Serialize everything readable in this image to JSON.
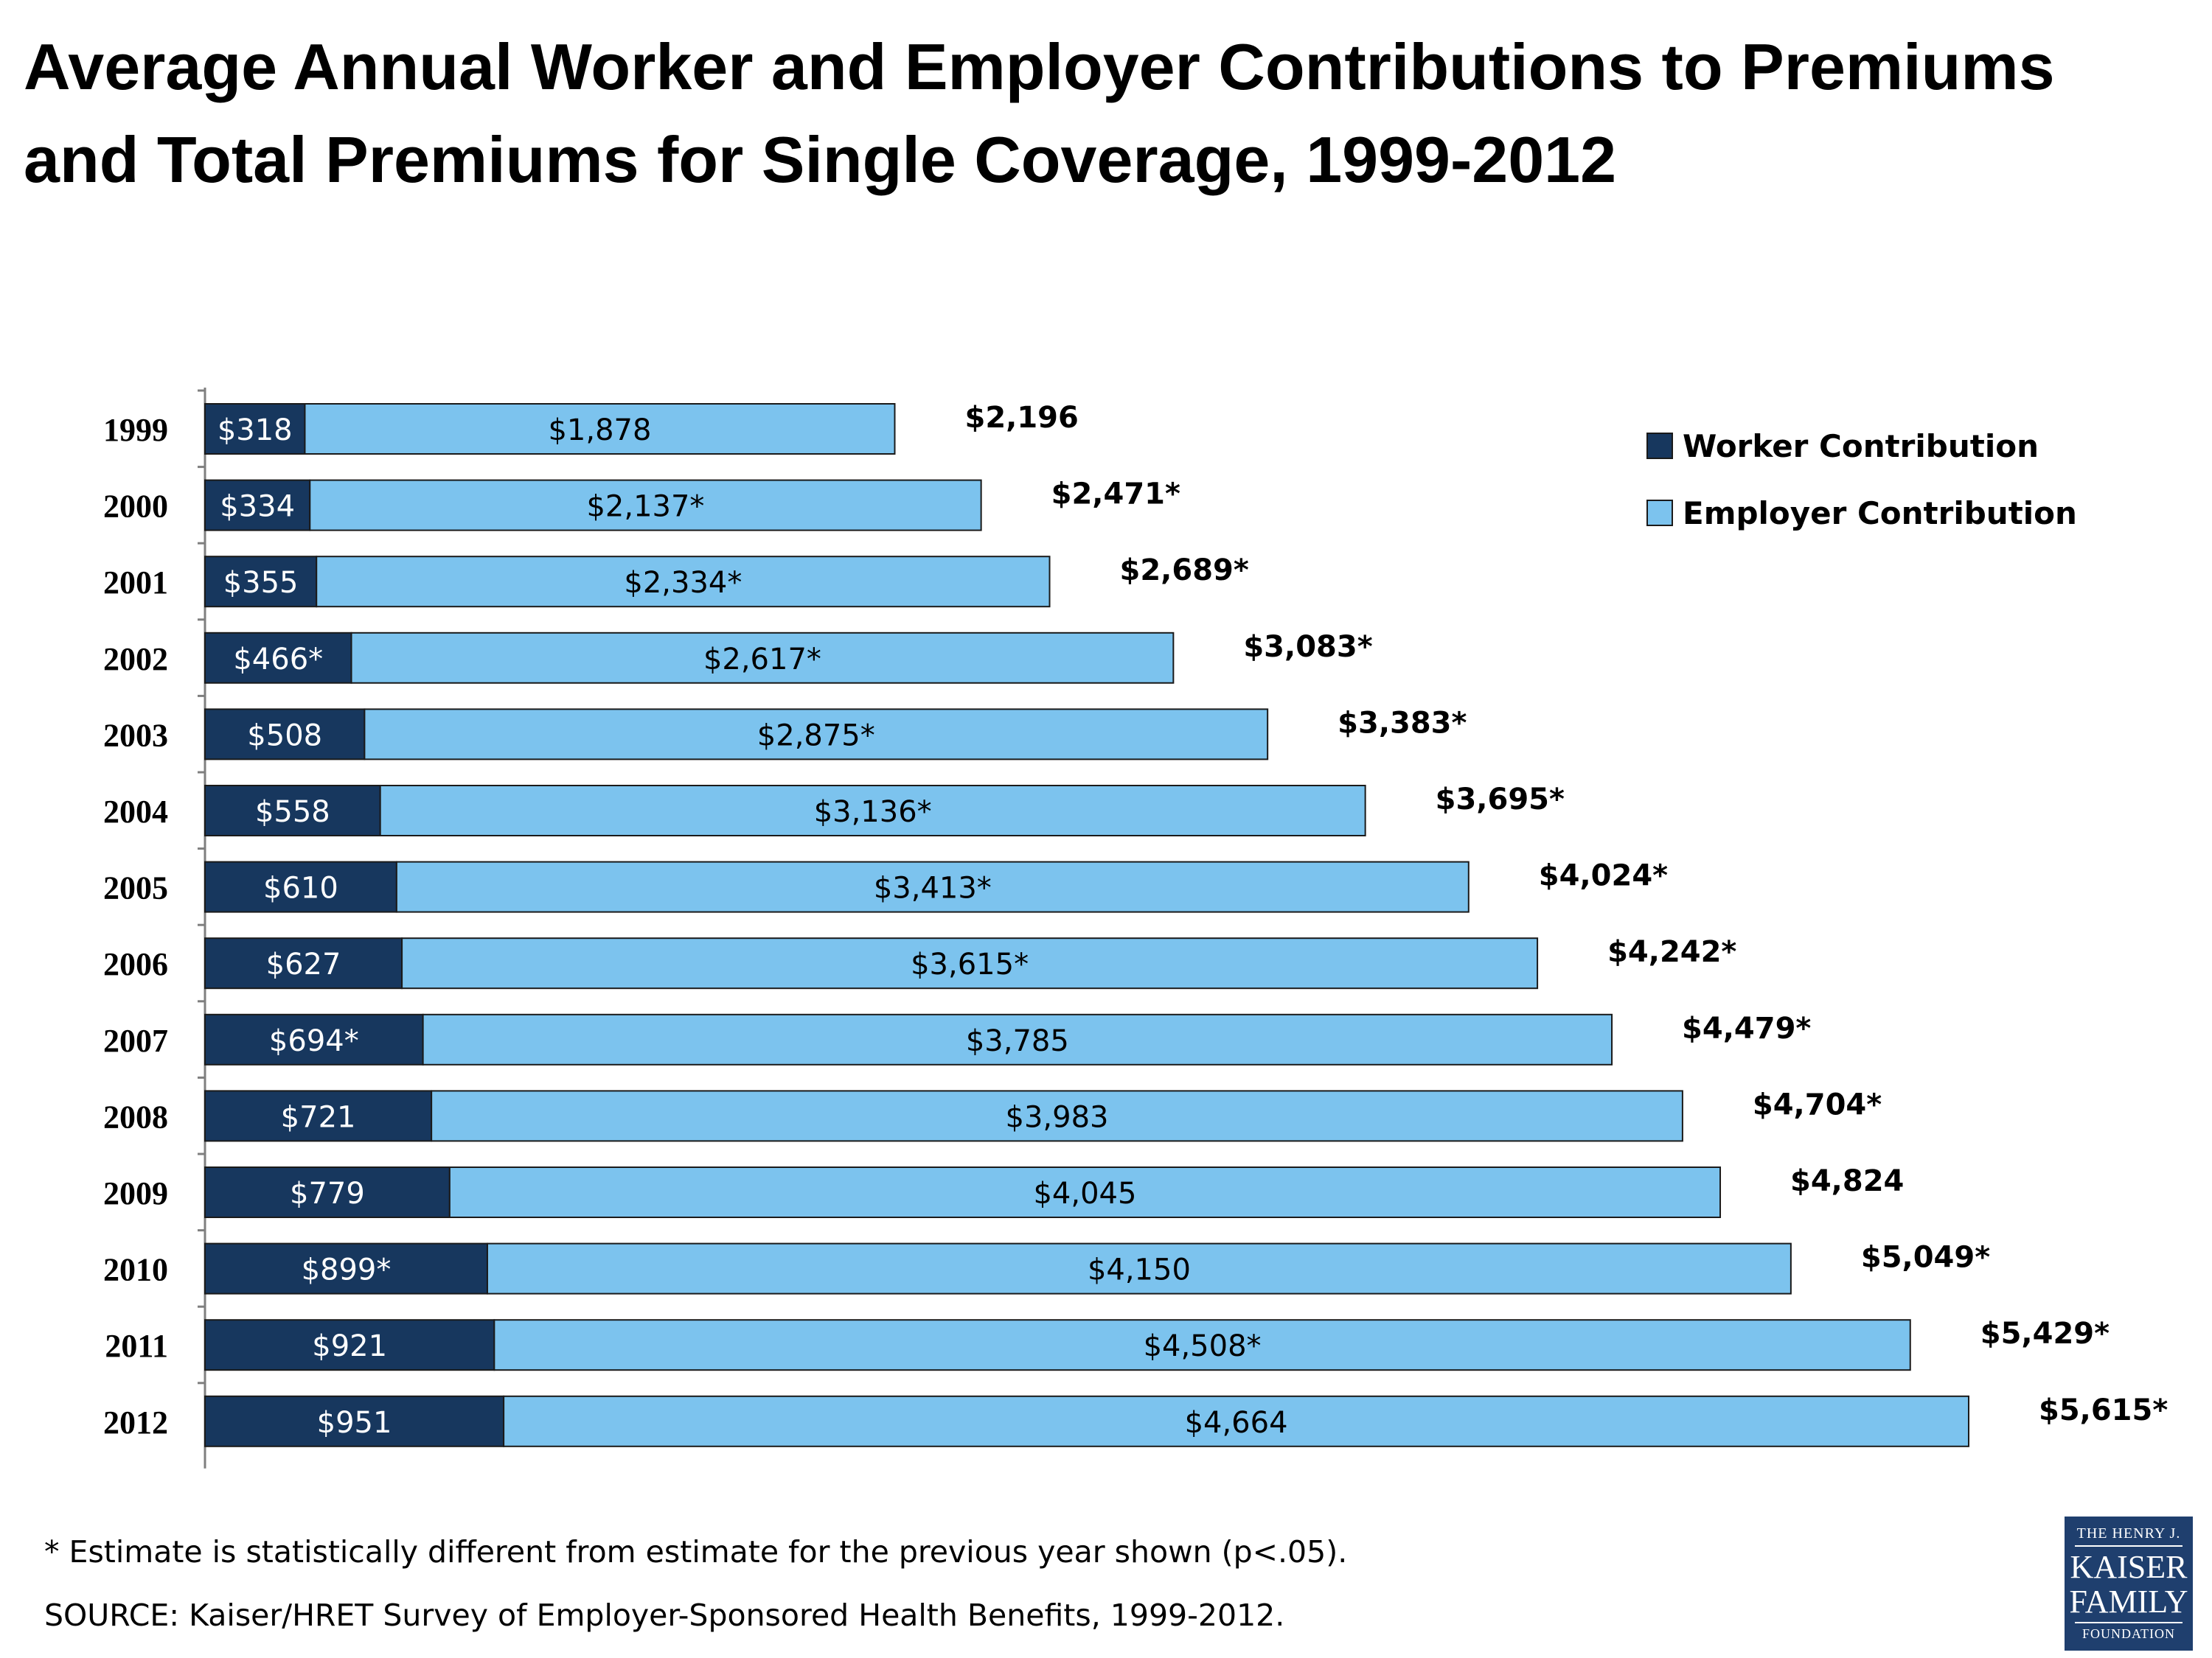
{
  "chart_data": {
    "type": "bar",
    "orientation": "horizontal",
    "stacked": true,
    "title": "Average Annual Worker and Employer Contributions to Premiums and Total Premiums for Single Coverage, 1999-2012",
    "categories": [
      "1999",
      "2000",
      "2001",
      "2002",
      "2003",
      "2004",
      "2005",
      "2006",
      "2007",
      "2008",
      "2009",
      "2010",
      "2011",
      "2012"
    ],
    "series": [
      {
        "name": "Worker Contribution",
        "color": "#17375e",
        "values": [
          318,
          334,
          355,
          466,
          508,
          558,
          610,
          627,
          694,
          721,
          779,
          899,
          921,
          951
        ],
        "labels": [
          "$318",
          "$334",
          "$355",
          "$466*",
          "$508",
          "$558",
          "$610",
          "$627",
          "$694*",
          "$721",
          "$779",
          "$899*",
          "$921",
          "$951"
        ]
      },
      {
        "name": "Employer Contribution",
        "color": "#7cc3ee",
        "values": [
          1878,
          2137,
          2334,
          2617,
          2875,
          3136,
          3413,
          3615,
          3785,
          3983,
          4045,
          4150,
          4508,
          4664
        ],
        "labels": [
          "$1,878",
          "$2,137*",
          "$2,334*",
          "$2,617*",
          "$2,875*",
          "$3,136*",
          "$3,413*",
          "$3,615*",
          "$3,785",
          "$3,983",
          "$4,045",
          "$4,150",
          "$4,508*",
          "$4,664"
        ]
      }
    ],
    "totals": [
      2196,
      2471,
      2689,
      3083,
      3383,
      3695,
      4024,
      4242,
      4479,
      4704,
      4824,
      5049,
      5429,
      5615
    ],
    "total_labels": [
      "$2,196",
      "$2,471*",
      "$2,689*",
      "$3,083*",
      "$3,383*",
      "$3,695*",
      "$4,024*",
      "$4,242*",
      "$4,479*",
      "$4,704*",
      "$4,824",
      "$5,049*",
      "$5,429*",
      "$5,615*"
    ],
    "xlim": [
      0,
      5615
    ],
    "legend_position": "top-right",
    "grid": false
  },
  "footnote": "* Estimate is statistically different from estimate for the previous year shown (p<.05).",
  "source": "SOURCE:  Kaiser/HRET Survey of Employer-Sponsored Health Benefits, 1999-2012.",
  "logo": {
    "line1": "THE HENRY J.",
    "line2": "KAISER",
    "line3": "FAMILY",
    "line4": "FOUNDATION"
  }
}
